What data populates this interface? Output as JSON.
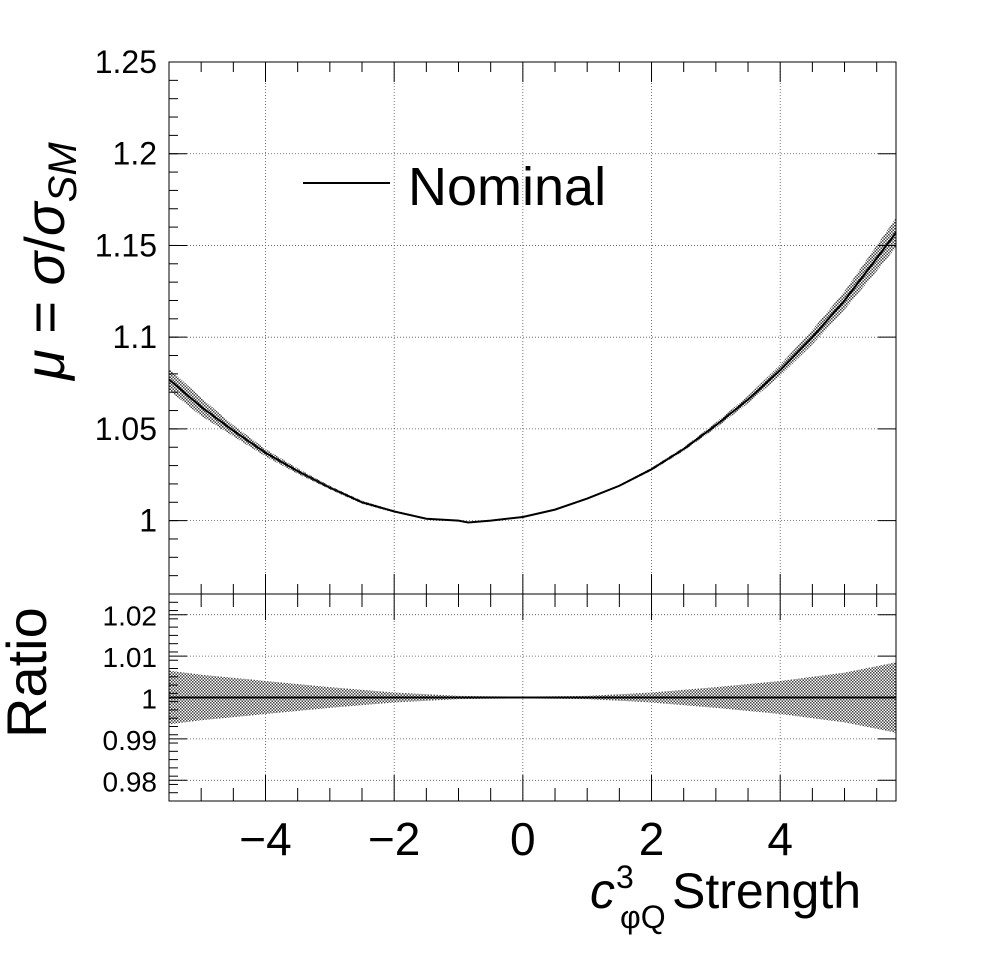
{
  "chart_data": {
    "type": "line",
    "upper": {
      "ylabel_mu": "μ",
      "ylabel_eq": " = ",
      "ylabel_sigma": "σ",
      "ylabel_slash": "/",
      "ylabel_sigma2": "σ",
      "ylabel_sub": "SM",
      "xlim": [
        -5.5,
        5.8
      ],
      "ylim": [
        0.96,
        1.25
      ],
      "yticks": [
        1,
        1.05,
        1.1,
        1.15,
        1.2,
        1.25
      ],
      "ytick_labels": [
        "1",
        "1.05",
        "1.1",
        "1.15",
        "1.2",
        "1.25"
      ],
      "grid": true,
      "legend": {
        "label": "Nominal",
        "placement": "top-left"
      },
      "series": [
        {
          "name": "Nominal",
          "x": [
            -5.5,
            -5,
            -4.5,
            -4,
            -3.5,
            -3,
            -2.5,
            -2,
            -1.5,
            -1,
            -0.85,
            -0.5,
            0,
            0.5,
            1,
            1.5,
            2,
            2.5,
            3,
            3.5,
            4,
            4.5,
            5,
            5.5,
            5.8
          ],
          "y": [
            1.077,
            1.062,
            1.049,
            1.037,
            1.027,
            1.018,
            1.01,
            1.005,
            1.001,
            1.0,
            0.999,
            1.0,
            1.002,
            1.006,
            1.012,
            1.019,
            1.028,
            1.039,
            1.052,
            1.066,
            1.082,
            1.1,
            1.12,
            1.143,
            1.157
          ],
          "band_halfwidth": [
            0.006,
            0.005,
            0.003,
            0.002,
            0.0015,
            0.001,
            0.0008,
            0.0006,
            0.0004,
            0.0002,
            0.0001,
            0.0001,
            0.0002,
            0.0003,
            0.0004,
            0.0005,
            0.0008,
            0.001,
            0.0015,
            0.002,
            0.003,
            0.004,
            0.005,
            0.007,
            0.008
          ]
        }
      ]
    },
    "lower": {
      "ylabel": "Ratio",
      "xlabel_c": "c",
      "xlabel_sup": "3",
      "xlabel_sub": "φQ",
      "xlabel_rest": " Strength",
      "xlim": [
        -5.5,
        5.8
      ],
      "ylim": [
        0.975,
        1.025
      ],
      "yticks": [
        0.98,
        0.99,
        1,
        1.01,
        1.02
      ],
      "ytick_labels": [
        "0.98",
        "0.99",
        "1",
        "1.01",
        "1.02"
      ],
      "xticks": [
        -4,
        -2,
        0,
        2,
        4
      ],
      "xtick_labels": [
        "−4",
        "−2",
        "0",
        "2",
        "4"
      ],
      "grid": true,
      "series": [
        {
          "name": "Nominal",
          "x": [
            -5.5,
            -5,
            -4,
            -3,
            -2,
            -1,
            0,
            1,
            2,
            3,
            4,
            5,
            5.8
          ],
          "y": [
            1,
            1,
            1,
            1,
            1,
            1,
            1,
            1,
            1,
            1,
            1,
            1,
            1
          ],
          "band_halfwidth": [
            0.0065,
            0.0055,
            0.004,
            0.0025,
            0.0012,
            0.0004,
            0.0002,
            0.0004,
            0.0012,
            0.0025,
            0.004,
            0.006,
            0.0085
          ]
        }
      ]
    }
  }
}
